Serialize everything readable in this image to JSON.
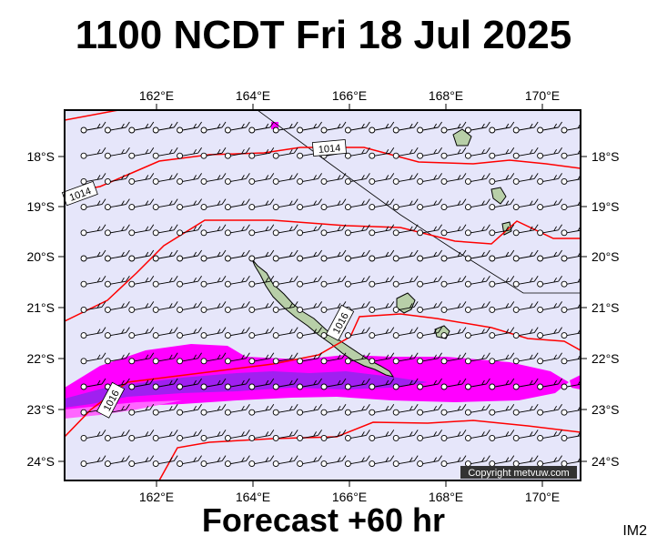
{
  "header": {
    "title": "1100 NCDT Fri 18 Jul 2025"
  },
  "footer": {
    "subtitle": "Forecast +60 hr",
    "image_id": "IM2"
  },
  "map": {
    "lon_ticks": [
      "162°E",
      "164°E",
      "166°E",
      "168°E",
      "170°E"
    ],
    "lat_ticks": [
      "18°S",
      "19°S",
      "20°S",
      "21°S",
      "22°S",
      "23°S",
      "24°S"
    ],
    "isobar_labels": [
      "1014",
      "1014",
      "1016",
      "1016"
    ],
    "copyright": "Copyright metvuw.com",
    "colors": {
      "ocean": "#e6e6fa",
      "isobar": "#ff0000",
      "rain_light": "#ff00ff",
      "rain_heavy": "#a020f0",
      "land": "#b8cfa8"
    }
  }
}
